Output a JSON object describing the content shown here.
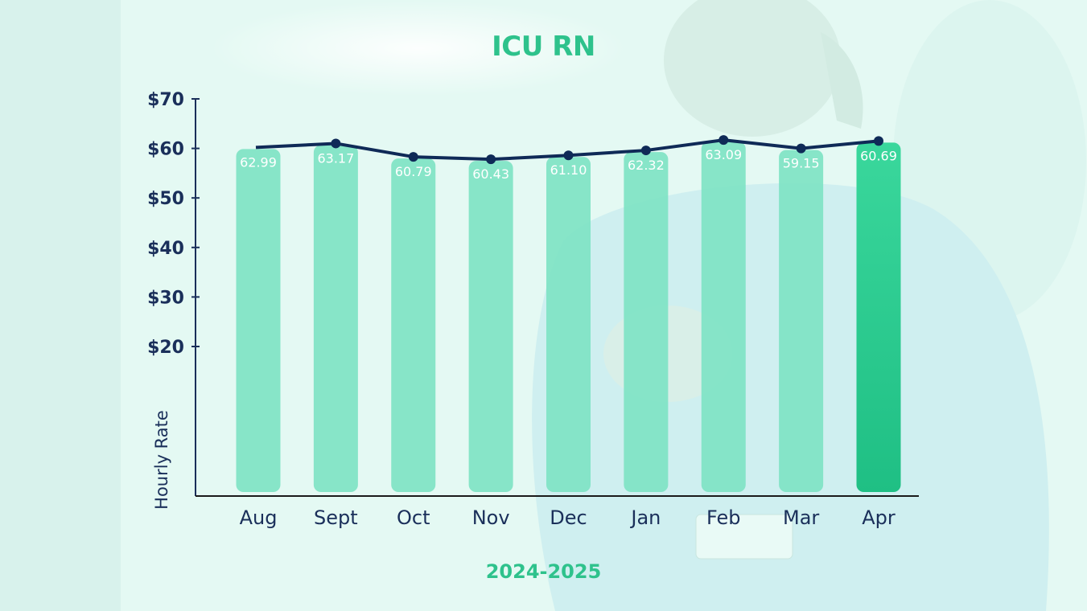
{
  "chart_data": {
    "type": "bar",
    "title": "ICU RN",
    "xlabel": "2024-2025",
    "ylabel": "Hourly Rate",
    "categories": [
      "Aug",
      "Sept",
      "Oct",
      "Nov",
      "Dec",
      "Jan",
      "Feb",
      "Mar",
      "Apr"
    ],
    "series": [
      {
        "values": [
          62.99,
          63.17,
          60.79,
          60.43,
          61.1,
          62.32,
          63.09,
          59.15,
          60.69
        ]
      },
      {
        "type": "line",
        "values": [
          60.2,
          61.0,
          58.3,
          57.8,
          58.6,
          59.6,
          61.7,
          60.0,
          61.5
        ]
      }
    ],
    "data_labels": [
      "62.99",
      "63.17",
      "60.79",
      "60.43",
      "61.10",
      "62.32",
      "63.09",
      "59.15",
      "60.69"
    ],
    "yticks": [
      {
        "value": 20,
        "label": "$20"
      },
      {
        "value": 30,
        "label": "$30"
      },
      {
        "value": 40,
        "label": "$40"
      },
      {
        "value": 50,
        "label": "$50"
      },
      {
        "value": 60,
        "label": "$60"
      },
      {
        "value": 70,
        "label": "$70"
      }
    ],
    "ylim": [
      0,
      70
    ],
    "grid": false,
    "colors": {
      "bar": "#7fe3c4",
      "bar_highlight": "#2fcf93",
      "line": "#0f2a57",
      "title": "#2ec28c",
      "axis": "#1a2f5a"
    }
  }
}
